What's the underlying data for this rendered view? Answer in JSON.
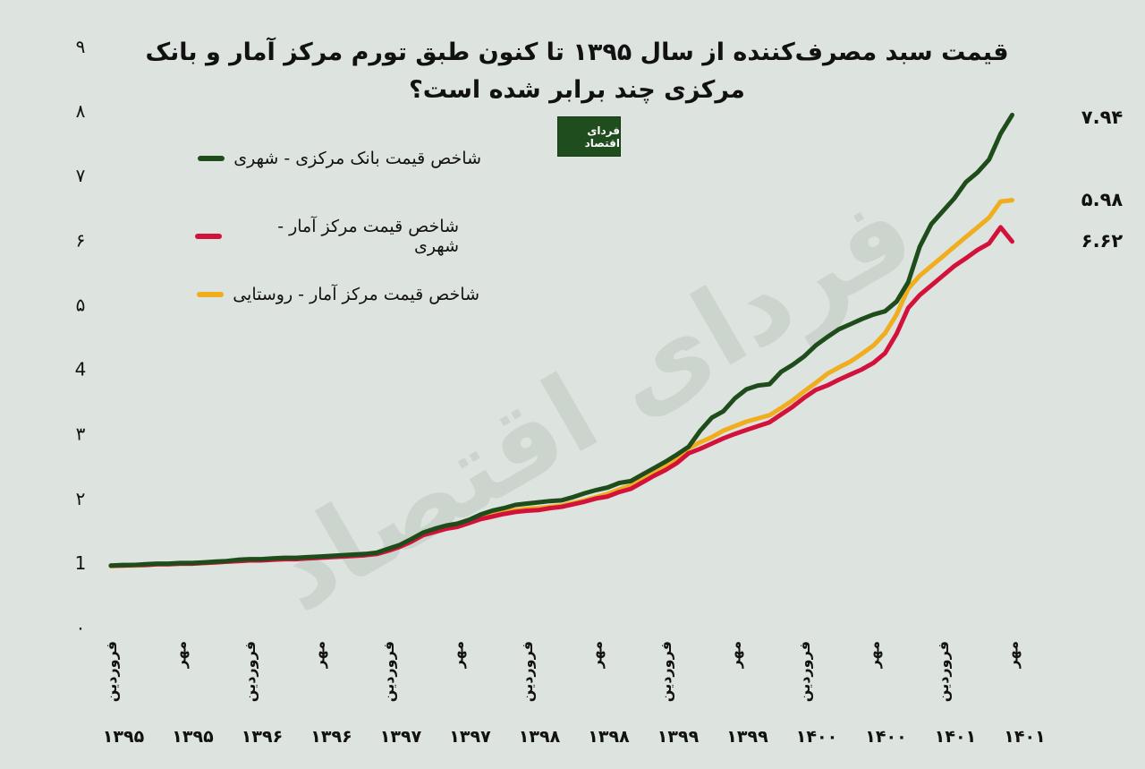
{
  "header": {
    "title": "قیمت سبد مصرف‌کننده از سال ۱۳۹۵ تا کنون طبق تورم مرکز آمار و بانک مرکزی چند برابر شده است؟",
    "logo_text": "فردای اقتصاد",
    "watermark_text": "فردای اقتصاد"
  },
  "colors": {
    "background": "#dde3de",
    "series_cbi_urban": "#1e4d1b",
    "series_sci_urban": "#d3123c",
    "series_sci_rural": "#f0ad1d"
  },
  "chart_data": {
    "type": "line",
    "title": "قیمت سبد مصرف‌کننده از سال ۱۳۹۵ تا کنون طبق تورم مرکز آمار و بانک مرکزی چند برابر شده است؟",
    "xlabel": "",
    "ylabel": "",
    "ylim": [
      0,
      9
    ],
    "y_ticks": [
      "۰",
      "1",
      "۲",
      "۳",
      "4",
      "۵",
      "۶",
      "۷",
      "۸",
      "۹"
    ],
    "grid": false,
    "legend_placement": "top-left",
    "x_tick_labels": [
      {
        "month": "فروردین",
        "year": "۱۳۹۵"
      },
      {
        "month": "مهر",
        "year": "۱۳۹۵"
      },
      {
        "month": "فروردین",
        "year": "۱۳۹۶"
      },
      {
        "month": "مهر",
        "year": "۱۳۹۶"
      },
      {
        "month": "فروردین",
        "year": "۱۳۹۷"
      },
      {
        "month": "مهر",
        "year": "۱۳۹۷"
      },
      {
        "month": "فروردین",
        "year": "۱۳۹۸"
      },
      {
        "month": "مهر",
        "year": "۱۳۹۸"
      },
      {
        "month": "فروردین",
        "year": "۱۳۹۹"
      },
      {
        "month": "مهر",
        "year": "۱۳۹۹"
      },
      {
        "month": "فروردین",
        "year": "۱۴۰۰"
      },
      {
        "month": "مهر",
        "year": "۱۴۰۰"
      },
      {
        "month": "فروردین",
        "year": "۱۴۰۱"
      },
      {
        "month": "مهر",
        "year": "۱۴۰۱"
      }
    ],
    "x_month_step": 6,
    "series": [
      {
        "name": "شاخص قیمت بانک مرکزی - شهری",
        "end_label": "۷.۹۴",
        "values": [
          0.96,
          0.97,
          0.97,
          0.98,
          0.99,
          0.99,
          1.0,
          1.0,
          1.01,
          1.02,
          1.03,
          1.05,
          1.06,
          1.06,
          1.07,
          1.08,
          1.08,
          1.09,
          1.1,
          1.11,
          1.12,
          1.13,
          1.14,
          1.16,
          1.22,
          1.28,
          1.37,
          1.47,
          1.53,
          1.58,
          1.61,
          1.67,
          1.75,
          1.81,
          1.85,
          1.9,
          1.92,
          1.94,
          1.96,
          1.97,
          2.02,
          2.08,
          2.13,
          2.17,
          2.24,
          2.27,
          2.37,
          2.47,
          2.57,
          2.68,
          2.8,
          3.05,
          3.25,
          3.35,
          3.55,
          3.69,
          3.75,
          3.77,
          3.96,
          4.07,
          4.2,
          4.37,
          4.5,
          4.62,
          4.7,
          4.78,
          4.85,
          4.9,
          5.05,
          5.35,
          5.9,
          6.25,
          6.45,
          6.65,
          6.9,
          7.05,
          7.25,
          7.65,
          7.94
        ]
      },
      {
        "name": "شاخص قیمت مرکز آمار - شهری",
        "end_label": "۵.۹۸",
        "values": [
          0.96,
          0.96,
          0.97,
          0.97,
          0.98,
          0.98,
          0.99,
          0.99,
          1.0,
          1.01,
          1.02,
          1.03,
          1.04,
          1.04,
          1.05,
          1.06,
          1.06,
          1.07,
          1.08,
          1.09,
          1.1,
          1.11,
          1.12,
          1.14,
          1.19,
          1.25,
          1.33,
          1.43,
          1.48,
          1.53,
          1.56,
          1.62,
          1.68,
          1.72,
          1.76,
          1.79,
          1.81,
          1.82,
          1.85,
          1.87,
          1.91,
          1.95,
          2.0,
          2.03,
          2.1,
          2.15,
          2.25,
          2.35,
          2.44,
          2.55,
          2.7,
          2.77,
          2.85,
          2.93,
          3.0,
          3.06,
          3.12,
          3.18,
          3.3,
          3.42,
          3.56,
          3.68,
          3.75,
          3.84,
          3.92,
          4.0,
          4.1,
          4.25,
          4.55,
          4.95,
          5.15,
          5.3,
          5.45,
          5.6,
          5.72,
          5.85,
          5.95,
          6.2,
          5.98
        ]
      },
      {
        "name": "شاخص قیمت مرکز آمار - روستایی",
        "end_label": "۶.۶۲",
        "values": [
          0.95,
          0.96,
          0.96,
          0.97,
          0.98,
          0.98,
          0.99,
          0.99,
          1.0,
          1.01,
          1.02,
          1.03,
          1.04,
          1.05,
          1.06,
          1.06,
          1.07,
          1.08,
          1.09,
          1.1,
          1.11,
          1.12,
          1.13,
          1.16,
          1.2,
          1.27,
          1.36,
          1.46,
          1.51,
          1.55,
          1.59,
          1.65,
          1.72,
          1.77,
          1.79,
          1.82,
          1.84,
          1.85,
          1.87,
          1.89,
          1.93,
          1.97,
          2.02,
          2.07,
          2.14,
          2.2,
          2.29,
          2.39,
          2.49,
          2.62,
          2.78,
          2.87,
          2.95,
          3.05,
          3.12,
          3.19,
          3.24,
          3.29,
          3.4,
          3.52,
          3.66,
          3.79,
          3.93,
          4.03,
          4.12,
          4.24,
          4.37,
          4.56,
          4.85,
          5.25,
          5.45,
          5.6,
          5.75,
          5.9,
          6.05,
          6.2,
          6.35,
          6.6,
          6.62
        ]
      }
    ]
  }
}
